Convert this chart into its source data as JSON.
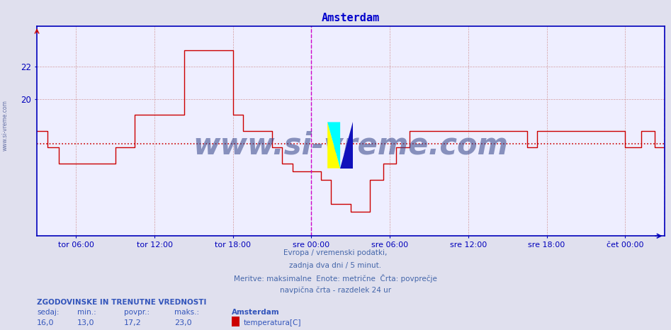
{
  "title": "Amsterdam",
  "title_color": "#0000cc",
  "bg_color": "#e0e0ee",
  "plot_bg_color": "#eeeeff",
  "grid_color": "#cc8888",
  "grid_style": "--",
  "avg_line_color": "#cc0000",
  "avg_line_style": ":",
  "avg_value": 17.2,
  "line_color": "#cc0000",
  "vline_color": "#cc00cc",
  "vline_style": "--",
  "axis_color": "#0000bb",
  "tick_color": "#0000bb",
  "ylim": [
    11.5,
    24.5
  ],
  "yticks": [
    20,
    22
  ],
  "footnote_lines": [
    "Evropa / vremenski podatki,",
    "zadnja dva dni / 5 minut.",
    "Meritve: maksimalne  Enote: metrične  Črta: povprečje",
    "navpična črta - razdelek 24 ur"
  ],
  "stats_label": "ZGODOVINSKE IN TRENUTNE VREDNOSTI",
  "stats_headers": [
    "sedaj:",
    "min.:",
    "povpr.:",
    "maks.:"
  ],
  "stats_values": [
    "16,0",
    "13,0",
    "17,2",
    "23,0"
  ],
  "legend_name": "Amsterdam",
  "legend_series": "temperatura[C]",
  "legend_color": "#cc0000",
  "x_tick_positions": [
    72,
    216,
    360,
    504,
    648,
    792,
    936,
    1080
  ],
  "x_tick_labels": [
    "tor 06:00",
    "tor 12:00",
    "tor 18:00",
    "sre 00:00",
    "sre 06:00",
    "sre 12:00",
    "sre 18:00",
    "čet 00:00"
  ],
  "vline_positions": [
    504,
    1152
  ],
  "total_points": 1152,
  "step_data": [
    [
      0,
      18.0
    ],
    [
      20,
      17.0
    ],
    [
      40,
      16.0
    ],
    [
      108,
      16.0
    ],
    [
      144,
      17.0
    ],
    [
      180,
      19.0
    ],
    [
      252,
      19.0
    ],
    [
      270,
      23.0
    ],
    [
      336,
      23.0
    ],
    [
      360,
      19.0
    ],
    [
      378,
      18.0
    ],
    [
      414,
      18.0
    ],
    [
      432,
      17.0
    ],
    [
      450,
      16.0
    ],
    [
      470,
      15.5
    ],
    [
      504,
      15.5
    ],
    [
      522,
      15.0
    ],
    [
      540,
      13.5
    ],
    [
      576,
      13.0
    ],
    [
      600,
      13.0
    ],
    [
      612,
      15.0
    ],
    [
      636,
      16.0
    ],
    [
      660,
      17.0
    ],
    [
      684,
      18.0
    ],
    [
      756,
      18.0
    ],
    [
      864,
      18.0
    ],
    [
      900,
      17.0
    ],
    [
      918,
      18.0
    ],
    [
      990,
      18.0
    ],
    [
      1008,
      18.0
    ],
    [
      1044,
      18.0
    ],
    [
      1080,
      17.0
    ],
    [
      1110,
      18.0
    ],
    [
      1134,
      17.0
    ],
    [
      1152,
      16.0
    ]
  ],
  "watermark_text": "www.si-vreme.com",
  "left_text": "www.si-vreme.com"
}
